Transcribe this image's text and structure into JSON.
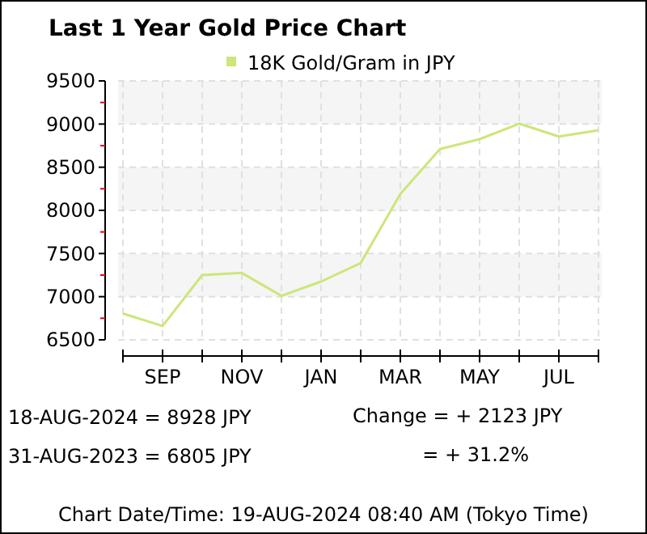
{
  "chart_data": {
    "type": "line",
    "title": "Last 1 Year Gold Price Chart",
    "categories": [
      null,
      "SEP",
      null,
      "NOV",
      null,
      "JAN",
      null,
      "MAR",
      null,
      "MAY",
      null,
      "JUL",
      null
    ],
    "series": [
      {
        "name": "18K Gold/Gram  in JPY",
        "color": "#cde67a",
        "values": [
          6805,
          6660,
          7250,
          7275,
          7010,
          7175,
          7390,
          8190,
          8710,
          8825,
          9005,
          8855,
          8928
        ]
      }
    ],
    "ylim": [
      6500,
      9500
    ],
    "yticks": [
      6500,
      {
        "value": 6750,
        "label": null
      },
      7000,
      {
        "value": 7250,
        "label": null
      },
      7500,
      {
        "value": 7750,
        "label": null
      },
      8000,
      {
        "value": 8250,
        "label": null
      },
      8500,
      {
        "value": 8750,
        "label": null
      },
      9000,
      {
        "value": 9250,
        "label": null
      },
      9500
    ],
    "grid": true,
    "legend": "top",
    "marker": "none",
    "annotations": [
      "18-AUG-2024 = 8928 JPY",
      "31-AUG-2023 = 6805 JPY",
      "Change   = + 2123 JPY",
      "= + 31.2%",
      "Chart Date/Time: 19-AUG-2024 08:40 AM (Tokyo Time)"
    ]
  }
}
